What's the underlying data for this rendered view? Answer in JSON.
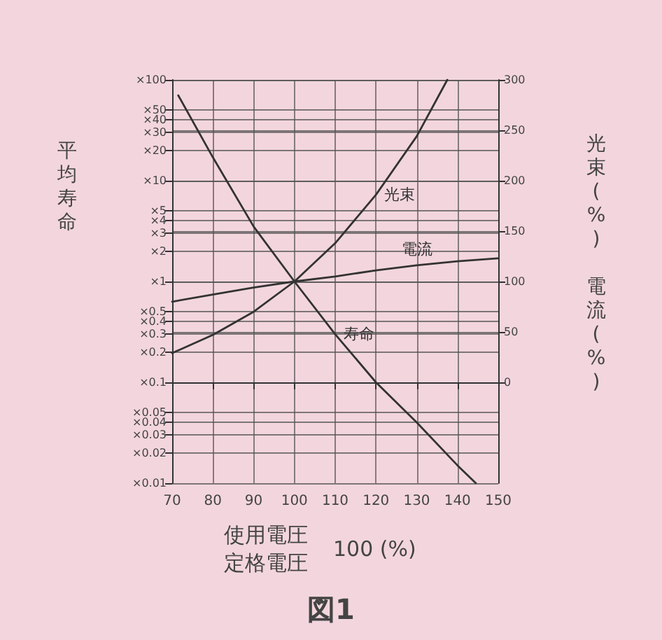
{
  "chart_data": {
    "type": "line",
    "title": "図1",
    "xlabel": "使用電圧定格電圧 100 (%)",
    "ylabel": "平均寿命",
    "y2label": "光束(%) 電流(%)",
    "xlim": [
      70,
      150
    ],
    "xticks": [
      70,
      80,
      90,
      100,
      110,
      120,
      130,
      140,
      150
    ],
    "ylim": [
      0.01,
      100
    ],
    "yticks": [
      {
        "value": 0.01,
        "label": "×0.01"
      },
      {
        "value": 0.02,
        "label": "×0.02"
      },
      {
        "value": 0.03,
        "label": "×0.03"
      },
      {
        "value": 0.04,
        "label": "×0.04"
      },
      {
        "value": 0.05,
        "label": "×0.05"
      },
      {
        "value": 0.1,
        "label": "×0.1"
      },
      {
        "value": 0.2,
        "label": "×0.2"
      },
      {
        "value": 0.3,
        "label": "×0.3"
      },
      {
        "value": 0.4,
        "label": "×0.4"
      },
      {
        "value": 0.5,
        "label": "×0.5"
      },
      {
        "value": 1,
        "label": "×1"
      },
      {
        "value": 2,
        "label": "×2"
      },
      {
        "value": 3,
        "label": "×3"
      },
      {
        "value": 4,
        "label": "×4"
      },
      {
        "value": 5,
        "label": "×5"
      },
      {
        "value": 10,
        "label": "×10"
      },
      {
        "value": 20,
        "label": "×20"
      },
      {
        "value": 30,
        "label": "×30"
      },
      {
        "value": 40,
        "label": "×40"
      },
      {
        "value": 50,
        "label": "×50"
      },
      {
        "value": 100,
        "label": "×100"
      }
    ],
    "y2lim": [
      -100,
      300
    ],
    "y2ticks": [
      0,
      50,
      100,
      150,
      200,
      250,
      300
    ],
    "log": "y",
    "grid": true,
    "legend": false,
    "marker": "none",
    "line_style": "solid",
    "series": [
      {
        "name": "光束",
        "color": "#333333",
        "axis": "y2",
        "x": [
          70,
          80,
          90,
          100,
          110,
          120,
          130,
          137.5
        ],
        "values": [
          29,
          47,
          70,
          100,
          138,
          186,
          244,
          300
        ]
      },
      {
        "name": "電流",
        "color": "#333333",
        "axis": "y2",
        "x": [
          70,
          80,
          90,
          100,
          110,
          120,
          130,
          140,
          150
        ],
        "values": [
          80,
          87,
          94,
          100,
          105,
          111,
          116,
          120,
          123
        ]
      },
      {
        "name": "寿命",
        "color": "#333333",
        "x": [
          71.5,
          80,
          90,
          100,
          110,
          120,
          130,
          140,
          144.5
        ],
        "values": [
          70,
          17,
          3.5,
          1,
          0.3,
          0.1,
          0.04,
          0.015,
          0.01
        ]
      }
    ]
  }
}
